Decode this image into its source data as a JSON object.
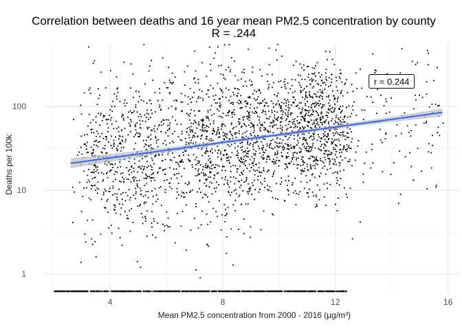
{
  "chart_data": {
    "type": "scatter",
    "title": "Correlation between deaths and 16 year mean PM2.5 concentration by county",
    "subtitle": "R = .244",
    "xlabel": "Mean PM2.5 concentration from 2000 - 2016 (µg/m³)",
    "ylabel": "Deaths per 100k",
    "x_ticks": [
      4,
      8,
      12,
      16
    ],
    "x_tick_labels": [
      "4",
      "8",
      "12",
      "16"
    ],
    "y_ticks": [
      1,
      10,
      100
    ],
    "y_tick_labels": [
      "1",
      "10",
      "100"
    ],
    "y_scale": "log10",
    "xlim": [
      1.65,
      16.4
    ],
    "ylim": [
      0.6,
      560
    ],
    "grid": true,
    "annotation": {
      "text": "r = 0.244",
      "x": 14.0,
      "y": 200
    },
    "trend_line": {
      "x": [
        2.6,
        15.8
      ],
      "y": [
        21,
        85
      ],
      "color": "#3366FF",
      "band_color": "#bdbdbd"
    },
    "point_color": "#000000",
    "sample_points": {
      "x": [
        5.2,
        3.4,
        10.1,
        11.0,
        13.5,
        5.8,
        8.1,
        2.7,
        15.7,
        7.2,
        4.6,
        9.0
      ],
      "y": [
        550,
        330,
        400,
        300,
        160,
        11,
        30,
        70,
        45,
        0.9,
        5,
        180
      ]
    },
    "zero_band": {
      "y": 0.62,
      "x_min": 2.0,
      "x_max": 12.4
    }
  }
}
